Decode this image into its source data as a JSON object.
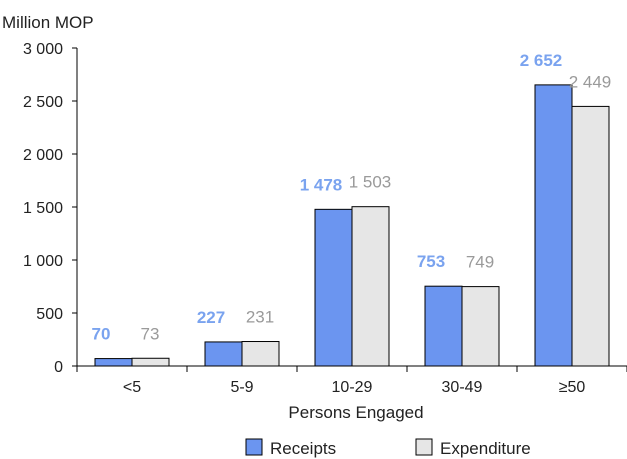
{
  "chart_data": {
    "type": "bar",
    "ylabel": "Million MOP",
    "xlabel": "Persons Engaged",
    "categories": [
      "<5",
      "5-9",
      "10-29",
      "30-49",
      "≥50"
    ],
    "series": [
      {
        "name": "Receipts",
        "values": [
          70,
          227,
          1478,
          753,
          2652
        ],
        "labels": [
          "70",
          "227",
          "1 478",
          "753",
          "2 652"
        ],
        "color": "#6b95f0",
        "label_color": "#7aa3ef"
      },
      {
        "name": "Expenditure",
        "values": [
          73,
          231,
          1503,
          749,
          2449
        ],
        "labels": [
          "73",
          "231",
          "1 503",
          "749",
          "2 449"
        ],
        "color": "#e6e6e6",
        "label_color": "#9a9a9a"
      }
    ],
    "ylim": [
      0,
      3000
    ],
    "yticks": [
      0,
      500,
      1000,
      1500,
      2000,
      2500,
      3000
    ],
    "ytick_labels": [
      "0",
      "500",
      "1 000",
      "1 500",
      "2 000",
      "2 500",
      "3 000"
    ],
    "grid": false,
    "legend_position": "bottom"
  }
}
